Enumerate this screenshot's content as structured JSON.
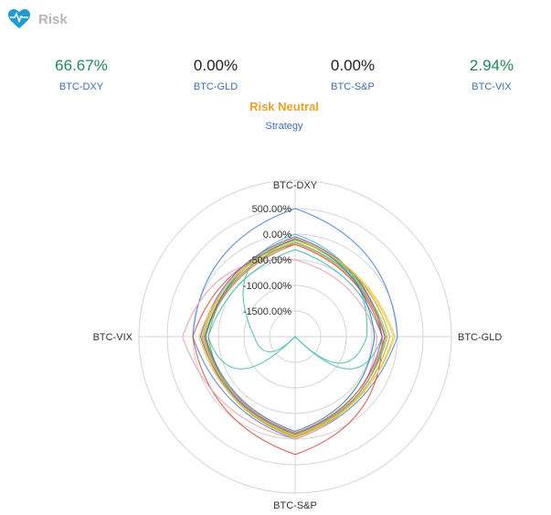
{
  "header": {
    "title": "Risk",
    "icon": "heart-pulse-icon",
    "icon_color": "#1e9bd7"
  },
  "metrics": [
    {
      "value": "66.67%",
      "label": "BTC-DXY",
      "color": "#1f8a5b"
    },
    {
      "value": "0.00%",
      "label": "BTC-GLD",
      "color": "#222222"
    },
    {
      "value": "0.00%",
      "label": "BTC-S&P",
      "color": "#222222"
    },
    {
      "value": "2.94%",
      "label": "BTC-VIX",
      "color": "#1f8a5b"
    }
  ],
  "strategy": {
    "name": "Risk Neutral",
    "label": "Strategy"
  },
  "chart_data": {
    "type": "radar",
    "axes": [
      "BTC-DXY",
      "BTC-GLD",
      "BTC-S&P",
      "BTC-VIX"
    ],
    "ticks": [
      "-1500.00%",
      "-1000.00%",
      "-500.00%",
      "0.00%",
      "500.00%"
    ],
    "range": [
      -2000,
      500
    ],
    "grid": true,
    "series": [
      {
        "color": "#4e86d8",
        "values": [
          500,
          0,
          0,
          0
        ]
      },
      {
        "color": "#4dc0b5",
        "values": [
          0,
          -600,
          -2000,
          -1200
        ]
      },
      {
        "color": "#4dc0b5",
        "values": [
          -300,
          -300,
          -2000,
          -300
        ]
      },
      {
        "color": "#d9534f",
        "values": [
          -200,
          -300,
          300,
          0
        ]
      },
      {
        "color": "#e8a0a8",
        "values": [
          -500,
          -400,
          0,
          200
        ]
      },
      {
        "color": "#5cb85c",
        "values": [
          -100,
          -250,
          -50,
          -300
        ]
      },
      {
        "color": "#8bc34a",
        "values": [
          -150,
          -200,
          -80,
          -250
        ]
      },
      {
        "color": "#f0c419",
        "values": [
          -120,
          -80,
          -30,
          -200
        ]
      },
      {
        "color": "#7a5cc7",
        "values": [
          -50,
          -300,
          -100,
          -150
        ]
      },
      {
        "color": "#e8742f",
        "values": [
          -200,
          -250,
          -120,
          -230
        ]
      },
      {
        "color": "#c9a227",
        "values": [
          -80,
          -150,
          -40,
          -180
        ]
      },
      {
        "color": "#9a9a9a",
        "values": [
          -170,
          -230,
          -60,
          -220
        ]
      },
      {
        "color": "#2e7dc4",
        "values": [
          -100,
          -450,
          -150,
          -250
        ]
      },
      {
        "color": "#e3c84a",
        "values": [
          -120,
          -50,
          -60,
          -120
        ]
      }
    ]
  }
}
